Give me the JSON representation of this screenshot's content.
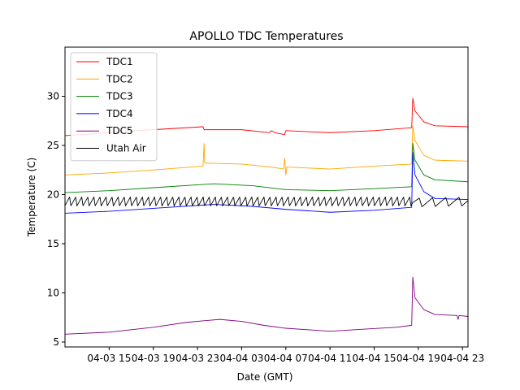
{
  "chart_data": {
    "type": "line",
    "title": "APOLLO TDC Temperatures",
    "xlabel": "Date (GMT)",
    "ylabel": "Temperature (C)",
    "x_unit": "hours since 04-03 11:00 GMT",
    "xlim": [
      0,
      36.5
    ],
    "ylim": [
      4.5,
      35
    ],
    "yticks": [
      5,
      10,
      15,
      20,
      25,
      30
    ],
    "xticks": [
      {
        "value": 4,
        "label": "04-03 15"
      },
      {
        "value": 8,
        "label": "04-03 19"
      },
      {
        "value": 12,
        "label": "04-03 23"
      },
      {
        "value": 16,
        "label": "04-04 03"
      },
      {
        "value": 20,
        "label": "04-04 07"
      },
      {
        "value": 24,
        "label": "04-04 11"
      },
      {
        "value": 28,
        "label": "04-04 15"
      },
      {
        "value": 32,
        "label": "04-04 19"
      },
      {
        "value": 36,
        "label": "04-04 23"
      }
    ],
    "legend_position": "top-left",
    "series": [
      {
        "name": "TDC1",
        "color": "#ff0000",
        "x": [
          0,
          4,
          8,
          12.5,
          12.6,
          16,
          18.5,
          18.7,
          19,
          19.9,
          20.0,
          24,
          28,
          31.4,
          31.5,
          31.7,
          32.5,
          33.5,
          36.5
        ],
        "y": [
          26.0,
          26.3,
          26.6,
          26.9,
          26.6,
          26.6,
          26.3,
          26.5,
          26.3,
          26.1,
          26.5,
          26.3,
          26.5,
          26.8,
          29.8,
          28.5,
          27.4,
          27.0,
          26.9
        ]
      },
      {
        "name": "TDC2",
        "color": "#ffa500",
        "x": [
          0,
          4,
          8,
          12.5,
          12.6,
          12.65,
          16,
          18.7,
          19.8,
          19.9,
          20.0,
          20.1,
          24,
          28,
          31.4,
          31.5,
          31.7,
          32.5,
          33.5,
          36.5
        ],
        "y": [
          22.0,
          22.2,
          22.5,
          22.9,
          25.2,
          23.2,
          23.1,
          22.8,
          22.6,
          23.7,
          22.0,
          22.8,
          22.6,
          22.9,
          23.1,
          27.0,
          25.5,
          24.0,
          23.5,
          23.4
        ]
      },
      {
        "name": "TDC3",
        "color": "#008000",
        "x": [
          0,
          4,
          8,
          13.5,
          17,
          20,
          24,
          28,
          31.4,
          31.5,
          31.7,
          32.5,
          33.5,
          36.5
        ],
        "y": [
          20.2,
          20.4,
          20.7,
          21.1,
          20.9,
          20.5,
          20.4,
          20.6,
          20.8,
          25.2,
          23.5,
          22.0,
          21.5,
          21.3
        ]
      },
      {
        "name": "TDC4",
        "color": "#0000ff",
        "x": [
          0,
          4,
          8,
          13.5,
          17,
          20,
          24,
          28,
          31.4,
          31.5,
          31.7,
          32.5,
          33.5,
          36.5
        ],
        "y": [
          18.1,
          18.3,
          18.6,
          19.0,
          18.8,
          18.5,
          18.2,
          18.4,
          18.7,
          24.3,
          22.0,
          20.3,
          19.6,
          19.5
        ]
      },
      {
        "name": "TDC5",
        "color": "#800080",
        "x": [
          0,
          4,
          8,
          11,
          14,
          16,
          18,
          20,
          24,
          27,
          30,
          31.4,
          31.5,
          31.7,
          32.5,
          33.5,
          35.5,
          35.6,
          35.7,
          36.5
        ],
        "y": [
          5.8,
          6.0,
          6.5,
          7.0,
          7.3,
          7.1,
          6.7,
          6.4,
          6.1,
          6.3,
          6.5,
          6.7,
          11.6,
          9.5,
          8.3,
          7.8,
          7.7,
          7.3,
          7.7,
          7.6
        ]
      },
      {
        "name": "Utah Air",
        "color": "#000000",
        "x": [
          0,
          31.5,
          32,
          36.5
        ],
        "y": [
          19.3,
          19.3,
          19.2,
          19.3
        ],
        "oscillation": {
          "amplitude": 0.45,
          "period_hours": 0.55,
          "period_hours_late": 1.2,
          "change_at": 31.5
        }
      }
    ]
  }
}
